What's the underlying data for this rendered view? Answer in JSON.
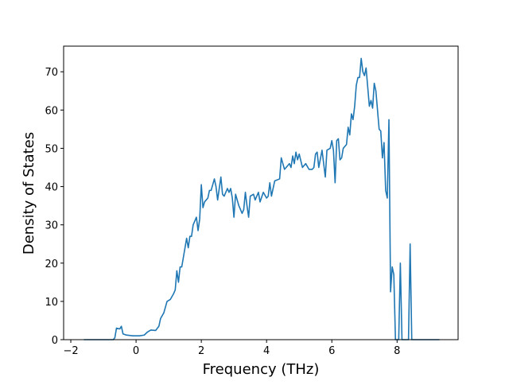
{
  "chart_data": {
    "type": "line",
    "xlabel": "Frequency (THz)",
    "ylabel": "Density of States",
    "xlim": [
      -2.22,
      9.87
    ],
    "ylim": [
      0,
      76.7
    ],
    "xticks": [
      {
        "value": -2,
        "label": "−2"
      },
      0,
      2,
      4,
      6,
      8
    ],
    "yticks": [
      0,
      10,
      20,
      30,
      40,
      50,
      60,
      70
    ],
    "grid": false,
    "series": [
      {
        "name": null,
        "color": "#1f77b4",
        "x": [
          -1.6,
          -1.0,
          -0.7,
          -0.65,
          -0.6,
          -0.5,
          -0.45,
          -0.4,
          -0.3,
          -0.1,
          0.1,
          0.25,
          0.35,
          0.45,
          0.6,
          0.7,
          0.75,
          0.85,
          0.95,
          1.05,
          1.15,
          1.2,
          1.25,
          1.3,
          1.35,
          1.4,
          1.5,
          1.55,
          1.6,
          1.65,
          1.7,
          1.75,
          1.85,
          1.9,
          1.95,
          2.0,
          2.05,
          2.1,
          2.2,
          2.25,
          2.3,
          2.4,
          2.45,
          2.5,
          2.6,
          2.65,
          2.7,
          2.8,
          2.85,
          2.9,
          2.95,
          3.0,
          3.05,
          3.15,
          3.25,
          3.3,
          3.35,
          3.4,
          3.45,
          3.5,
          3.6,
          3.65,
          3.7,
          3.75,
          3.8,
          3.9,
          4.0,
          4.05,
          4.1,
          4.15,
          4.25,
          4.4,
          4.45,
          4.55,
          4.65,
          4.7,
          4.75,
          4.8,
          4.85,
          4.9,
          4.95,
          5.0,
          5.1,
          5.2,
          5.3,
          5.4,
          5.45,
          5.5,
          5.55,
          5.6,
          5.7,
          5.75,
          5.8,
          5.85,
          5.95,
          6.0,
          6.05,
          6.1,
          6.15,
          6.2,
          6.25,
          6.3,
          6.35,
          6.45,
          6.5,
          6.55,
          6.6,
          6.65,
          6.7,
          6.75,
          6.8,
          6.85,
          6.9,
          6.95,
          7.0,
          7.05,
          7.1,
          7.15,
          7.2,
          7.25,
          7.3,
          7.35,
          7.45,
          7.5,
          7.55,
          7.6,
          7.65,
          7.7,
          7.75,
          7.8,
          7.85,
          7.9,
          7.95,
          8.05,
          8.1,
          8.15,
          8.35,
          8.4,
          8.45,
          9.3
        ],
        "values": [
          0,
          0,
          0,
          0.5,
          3,
          2.8,
          3.5,
          1.5,
          1.2,
          1.0,
          1.0,
          1.2,
          2.0,
          2.5,
          2.4,
          3.5,
          5.5,
          7,
          10,
          10.5,
          12,
          13,
          18,
          15,
          19,
          19,
          24,
          26.5,
          24,
          27,
          27,
          30,
          32,
          28.5,
          31.5,
          40.5,
          34.5,
          36,
          37,
          39,
          39,
          42,
          40,
          36.5,
          42.5,
          38,
          37.5,
          39.5,
          38.5,
          39.5,
          37,
          32,
          38,
          35,
          33,
          34,
          38.5,
          35,
          32,
          37.5,
          38,
          36.5,
          37.5,
          38.5,
          36,
          38.5,
          37,
          37.5,
          41,
          37.5,
          41.5,
          42,
          47.5,
          44.5,
          45.5,
          46,
          45,
          48,
          46,
          49,
          47,
          48.5,
          45,
          46,
          44.5,
          44.5,
          45,
          48.5,
          49,
          45,
          49.5,
          46,
          42.5,
          49.5,
          50,
          52,
          49.5,
          41,
          52,
          52.5,
          47,
          47.5,
          50,
          51,
          55.5,
          53.5,
          59,
          57.5,
          61,
          66.5,
          68.5,
          68.5,
          73.5,
          70,
          69,
          71,
          66,
          61,
          62.5,
          60.5,
          67,
          65,
          55,
          54.5,
          47.5,
          51.5,
          39,
          37,
          57.5,
          12.5,
          19,
          17,
          0,
          0,
          20,
          0,
          0,
          25,
          0,
          0
        ]
      }
    ]
  }
}
